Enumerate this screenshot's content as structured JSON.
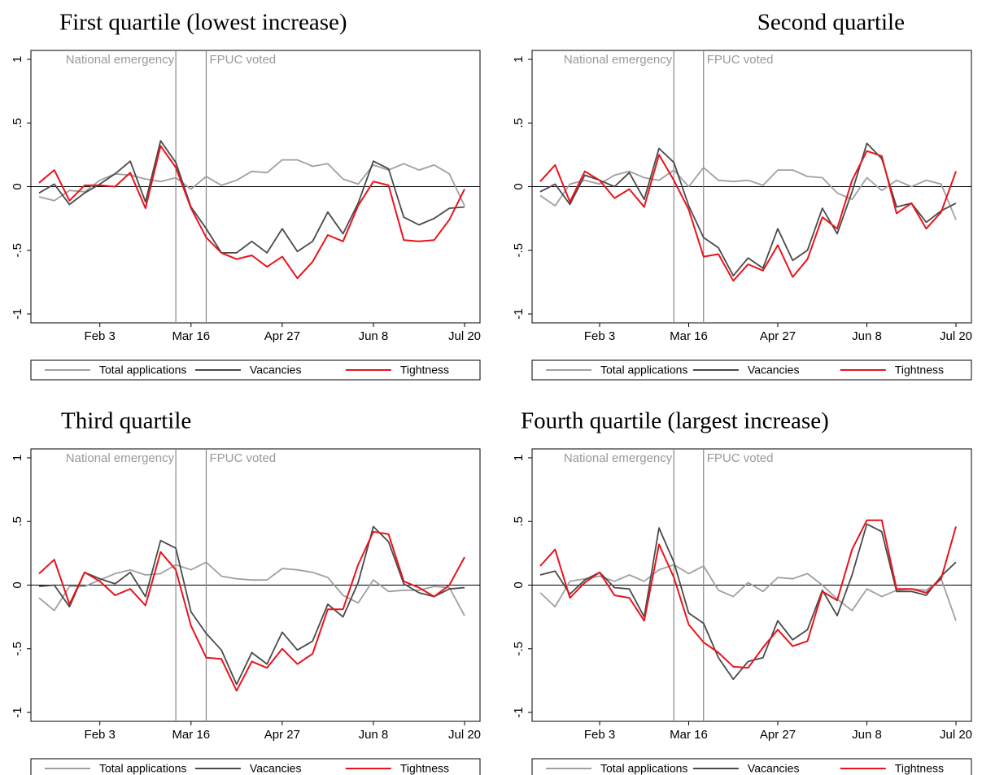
{
  "chart_data": [
    {
      "type": "line",
      "title": "First quartile (lowest increase)",
      "categories": [
        null,
        null,
        null,
        null,
        "Feb 3",
        null,
        null,
        null,
        null,
        null,
        "Mar 16",
        null,
        null,
        null,
        null,
        null,
        "Apr 27",
        null,
        null,
        null,
        null,
        null,
        "Jun 8",
        null,
        null,
        null,
        null,
        null,
        "Jul 20"
      ],
      "series": [
        {
          "name": "Total applications",
          "color": "#a0a0a0",
          "values": [
            -0.08,
            -0.11,
            -0.03,
            -0.04,
            0.05,
            0.1,
            0.09,
            0.06,
            0.04,
            0.07,
            -0.02,
            0.08,
            0.01,
            0.05,
            0.12,
            0.11,
            0.21,
            0.21,
            0.16,
            0.18,
            0.06,
            0.02,
            0.17,
            0.13,
            0.18,
            0.13,
            0.17,
            0.1,
            -0.15
          ]
        },
        {
          "name": "Vacancies",
          "color": "#4a4a4a",
          "values": [
            -0.05,
            0.02,
            -0.14,
            -0.05,
            0.02,
            0.1,
            0.2,
            -0.12,
            0.36,
            0.19,
            -0.16,
            -0.33,
            -0.52,
            -0.52,
            -0.43,
            -0.52,
            -0.33,
            -0.51,
            -0.43,
            -0.2,
            -0.37,
            -0.13,
            0.2,
            0.14,
            -0.24,
            -0.3,
            -0.25,
            -0.17,
            -0.16
          ]
        },
        {
          "name": "Tightness",
          "color": "#e8141c",
          "values": [
            0.03,
            0.13,
            -0.11,
            0.01,
            0.01,
            0.0,
            0.11,
            -0.17,
            0.32,
            0.15,
            -0.17,
            -0.4,
            -0.52,
            -0.57,
            -0.54,
            -0.63,
            -0.55,
            -0.72,
            -0.59,
            -0.38,
            -0.43,
            -0.15,
            0.04,
            0.01,
            -0.42,
            -0.43,
            -0.42,
            -0.26,
            -0.02
          ]
        }
      ],
      "ylim": [
        -1.07,
        1.07
      ],
      "yticks": [
        {
          "value": -1,
          "label": "-1"
        },
        {
          "value": -0.5,
          "label": "-.5"
        },
        0,
        {
          "value": 0.5,
          "label": ".5"
        },
        1
      ],
      "hline": 0,
      "annotations": [
        {
          "label": "National emergency",
          "x": 9
        },
        {
          "label": "FPUC voted",
          "x": 11
        }
      ],
      "legend": "bottom"
    },
    {
      "type": "line",
      "title": "Second quartile",
      "categories": [
        null,
        null,
        null,
        null,
        "Feb 3",
        null,
        null,
        null,
        null,
        null,
        "Mar 16",
        null,
        null,
        null,
        null,
        null,
        "Apr 27",
        null,
        null,
        null,
        null,
        null,
        "Jun 8",
        null,
        null,
        null,
        null,
        null,
        "Jul 20"
      ],
      "series": [
        {
          "name": "Total applications",
          "color": "#a0a0a0",
          "values": [
            -0.07,
            -0.15,
            0.02,
            0.05,
            0.02,
            0.09,
            0.12,
            0.07,
            0.05,
            0.13,
            0.0,
            0.15,
            0.05,
            0.04,
            0.05,
            0.01,
            0.13,
            0.13,
            0.08,
            0.07,
            -0.05,
            -0.1,
            0.07,
            -0.03,
            0.05,
            0.0,
            0.05,
            0.02,
            -0.26
          ]
        },
        {
          "name": "Vacancies",
          "color": "#4a4a4a",
          "values": [
            -0.04,
            0.02,
            -0.14,
            0.09,
            0.05,
            0.0,
            0.11,
            -0.1,
            0.3,
            0.19,
            -0.15,
            -0.4,
            -0.48,
            -0.7,
            -0.56,
            -0.64,
            -0.33,
            -0.58,
            -0.5,
            -0.17,
            -0.37,
            -0.04,
            0.34,
            0.22,
            -0.16,
            -0.13,
            -0.28,
            -0.19,
            -0.13
          ]
        },
        {
          "name": "Tightness",
          "color": "#e8141c",
          "values": [
            0.04,
            0.17,
            -0.12,
            0.12,
            0.05,
            -0.09,
            -0.02,
            -0.16,
            0.25,
            0.05,
            -0.18,
            -0.55,
            -0.53,
            -0.74,
            -0.61,
            -0.66,
            -0.46,
            -0.71,
            -0.57,
            -0.24,
            -0.33,
            0.05,
            0.28,
            0.24,
            -0.21,
            -0.13,
            -0.33,
            -0.2,
            0.12
          ]
        }
      ],
      "ylim": [
        -1.07,
        1.07
      ],
      "yticks": [
        {
          "value": -1,
          "label": "-1"
        },
        {
          "value": -0.5,
          "label": "-.5"
        },
        0,
        {
          "value": 0.5,
          "label": ".5"
        },
        1
      ],
      "hline": 0,
      "annotations": [
        {
          "label": "National emergency",
          "x": 9
        },
        {
          "label": "FPUC voted",
          "x": 11
        }
      ],
      "legend": "bottom"
    },
    {
      "type": "line",
      "title": "Third quartile",
      "categories": [
        null,
        null,
        null,
        null,
        "Feb 3",
        null,
        null,
        null,
        null,
        null,
        "Mar 16",
        null,
        null,
        null,
        null,
        null,
        "Apr 27",
        null,
        null,
        null,
        null,
        null,
        "Jun 8",
        null,
        null,
        null,
        null,
        null,
        "Jul 20"
      ],
      "series": [
        {
          "name": "Total applications",
          "color": "#a0a0a0",
          "values": [
            -0.1,
            -0.2,
            -0.01,
            -0.01,
            0.04,
            0.09,
            0.12,
            0.08,
            0.09,
            0.16,
            0.12,
            0.18,
            0.07,
            0.05,
            0.04,
            0.04,
            0.13,
            0.12,
            0.1,
            0.06,
            -0.08,
            -0.14,
            0.04,
            -0.05,
            -0.04,
            -0.04,
            -0.01,
            -0.02,
            -0.24
          ]
        },
        {
          "name": "Vacancies",
          "color": "#4a4a4a",
          "values": [
            -0.01,
            0.0,
            -0.17,
            0.1,
            0.05,
            0.01,
            0.1,
            -0.09,
            0.35,
            0.29,
            -0.21,
            -0.38,
            -0.51,
            -0.78,
            -0.53,
            -0.62,
            -0.37,
            -0.51,
            -0.44,
            -0.15,
            -0.25,
            0.02,
            0.46,
            0.34,
            0.01,
            -0.06,
            -0.09,
            -0.03,
            -0.02
          ]
        },
        {
          "name": "Tightness",
          "color": "#e8141c",
          "values": [
            0.09,
            0.2,
            -0.15,
            0.1,
            0.03,
            -0.08,
            -0.03,
            -0.16,
            0.26,
            0.12,
            -0.32,
            -0.57,
            -0.58,
            -0.83,
            -0.6,
            -0.65,
            -0.5,
            -0.62,
            -0.54,
            -0.19,
            -0.19,
            0.16,
            0.42,
            0.4,
            0.03,
            -0.02,
            -0.09,
            0.0,
            0.22
          ]
        }
      ],
      "ylim": [
        -1.07,
        1.07
      ],
      "yticks": [
        {
          "value": -1,
          "label": "-1"
        },
        {
          "value": -0.5,
          "label": "-.5"
        },
        0,
        {
          "value": 0.5,
          "label": ".5"
        },
        1
      ],
      "hline": 0,
      "annotations": [
        {
          "label": "National emergency",
          "x": 9
        },
        {
          "label": "FPUC voted",
          "x": 11
        }
      ],
      "legend": "bottom"
    },
    {
      "type": "line",
      "title": "Fourth quartile (largest increase)",
      "categories": [
        null,
        null,
        null,
        null,
        "Feb 3",
        null,
        null,
        null,
        null,
        null,
        "Mar 16",
        null,
        null,
        null,
        null,
        null,
        "Apr 27",
        null,
        null,
        null,
        null,
        null,
        "Jun 8",
        null,
        null,
        null,
        null,
        null,
        "Jul 20"
      ],
      "series": [
        {
          "name": "Total applications",
          "color": "#a0a0a0",
          "values": [
            -0.06,
            -0.17,
            0.03,
            0.05,
            0.07,
            0.03,
            0.08,
            0.03,
            0.12,
            0.16,
            0.09,
            0.15,
            -0.04,
            -0.09,
            0.02,
            -0.05,
            0.06,
            0.05,
            0.09,
            0.0,
            -0.11,
            -0.2,
            -0.03,
            -0.09,
            -0.04,
            -0.03,
            -0.04,
            0.05,
            -0.28
          ]
        },
        {
          "name": "Vacancies",
          "color": "#4a4a4a",
          "values": [
            0.08,
            0.11,
            -0.07,
            0.04,
            0.1,
            -0.02,
            -0.03,
            -0.25,
            0.45,
            0.18,
            -0.22,
            -0.3,
            -0.57,
            -0.74,
            -0.6,
            -0.57,
            -0.28,
            -0.43,
            -0.35,
            -0.04,
            -0.24,
            0.08,
            0.48,
            0.42,
            -0.05,
            -0.05,
            -0.08,
            0.07,
            0.18
          ]
        },
        {
          "name": "Tightness",
          "color": "#e8141c",
          "values": [
            0.15,
            0.28,
            -0.1,
            0.02,
            0.1,
            -0.08,
            -0.1,
            -0.28,
            0.32,
            0.06,
            -0.31,
            -0.45,
            -0.53,
            -0.64,
            -0.65,
            -0.49,
            -0.35,
            -0.48,
            -0.44,
            -0.05,
            -0.12,
            0.28,
            0.51,
            0.51,
            -0.03,
            -0.03,
            -0.06,
            0.05,
            0.46
          ]
        }
      ],
      "ylim": [
        -1.07,
        1.07
      ],
      "yticks": [
        {
          "value": -1,
          "label": "-1"
        },
        {
          "value": -0.5,
          "label": "-.5"
        },
        0,
        {
          "value": 0.5,
          "label": ".5"
        },
        1
      ],
      "hline": 0,
      "annotations": [
        {
          "label": "National emergency",
          "x": 9
        },
        {
          "label": "FPUC voted",
          "x": 11
        }
      ],
      "legend": "bottom"
    }
  ]
}
